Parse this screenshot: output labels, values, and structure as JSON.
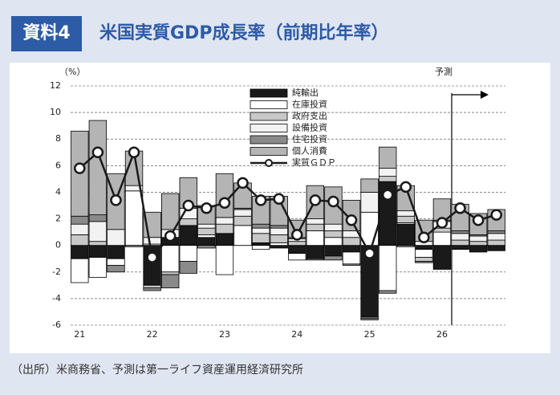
{
  "chart_data": {
    "type": "bar",
    "label": "資料4",
    "title": "米国実質GDP成長率（前期比年率）",
    "ylabel": "（%）",
    "annotation": "予測",
    "source": "（出所）米商務省、予測は第一ライフ資産運用経済研究所",
    "categories": [
      "21",
      null,
      null,
      null,
      "22",
      null,
      null,
      null,
      "23",
      null,
      null,
      null,
      "24",
      null,
      null,
      null,
      "25",
      null,
      null,
      null,
      "26",
      null,
      null,
      null
    ],
    "series": [
      {
        "name": "純輸出",
        "color": "#1a1a1a",
        "values": [
          -1.0,
          -0.9,
          -1.0,
          0.0,
          -3.0,
          0.6,
          1.5,
          0.6,
          0.9,
          0.0,
          0.2,
          -0.2,
          -0.6,
          -1.0,
          -0.8,
          -0.5,
          -5.4,
          4.8,
          1.6,
          -0.3,
          -1.8,
          -0.3,
          -0.5,
          -0.4
        ]
      },
      {
        "name": "在庫投資",
        "color": "#ffffff",
        "values": [
          -1.8,
          -1.5,
          -0.5,
          4.1,
          0.1,
          -2.0,
          -1.2,
          0.2,
          -2.2,
          1.5,
          -0.3,
          0.2,
          -0.5,
          1.1,
          0.6,
          -0.9,
          2.5,
          -3.4,
          0.1,
          -0.6,
          1.0,
          0.0,
          0.0,
          0.0
        ]
      },
      {
        "name": "政府支出",
        "color": "#c8c8c8",
        "values": [
          0.8,
          0.3,
          0.0,
          0.0,
          -0.2,
          -0.2,
          0.5,
          0.5,
          0.7,
          0.7,
          0.7,
          0.6,
          0.3,
          0.5,
          0.5,
          0.6,
          -0.1,
          0.4,
          0.5,
          -0.3,
          0.3,
          0.4,
          0.3,
          0.4
        ]
      },
      {
        "name": "設備投資",
        "color": "#f2f2f2",
        "values": [
          0.8,
          1.5,
          1.2,
          0.4,
          0.5,
          0.6,
          0.8,
          0.3,
          0.5,
          0.5,
          0.4,
          0.5,
          0.2,
          0.4,
          0.5,
          0.5,
          1.5,
          0.6,
          0.4,
          0.3,
          0.5,
          0.5,
          0.4,
          0.5
        ]
      },
      {
        "name": "住宅投資",
        "color": "#8a8a8a",
        "values": [
          0.6,
          0.5,
          -0.5,
          -0.1,
          -0.2,
          -1.0,
          -0.9,
          -0.2,
          0.0,
          0.1,
          0.3,
          0.2,
          0.1,
          -0.1,
          -0.3,
          -0.1,
          -0.1,
          -0.2,
          -0.1,
          -0.1,
          0.1,
          0.2,
          0.1,
          0.2
        ]
      },
      {
        "name": "個人消費",
        "color": "#b4b4b4",
        "values": [
          6.4,
          7.1,
          4.2,
          2.6,
          1.9,
          2.7,
          2.3,
          1.4,
          3.3,
          1.9,
          2.1,
          2.2,
          1.3,
          2.5,
          2.8,
          2.3,
          1.0,
          1.6,
          1.9,
          1.6,
          1.6,
          2.0,
          1.6,
          1.6
        ]
      },
      {
        "name": "実質ＧＤＰ",
        "type": "line",
        "color": "#1a1a1a",
        "values": [
          5.8,
          7.0,
          3.4,
          7.0,
          -0.9,
          0.7,
          3.0,
          2.8,
          3.2,
          4.7,
          3.4,
          3.5,
          0.8,
          3.4,
          3.3,
          1.9,
          -0.6,
          3.8,
          4.4,
          0.6,
          1.7,
          2.8,
          1.9,
          2.3
        ]
      }
    ],
    "ylim": [
      -6,
      12
    ],
    "yticks": [
      -6,
      -4,
      -2,
      0,
      2,
      4,
      6,
      8,
      10,
      12
    ],
    "grid": true
  }
}
